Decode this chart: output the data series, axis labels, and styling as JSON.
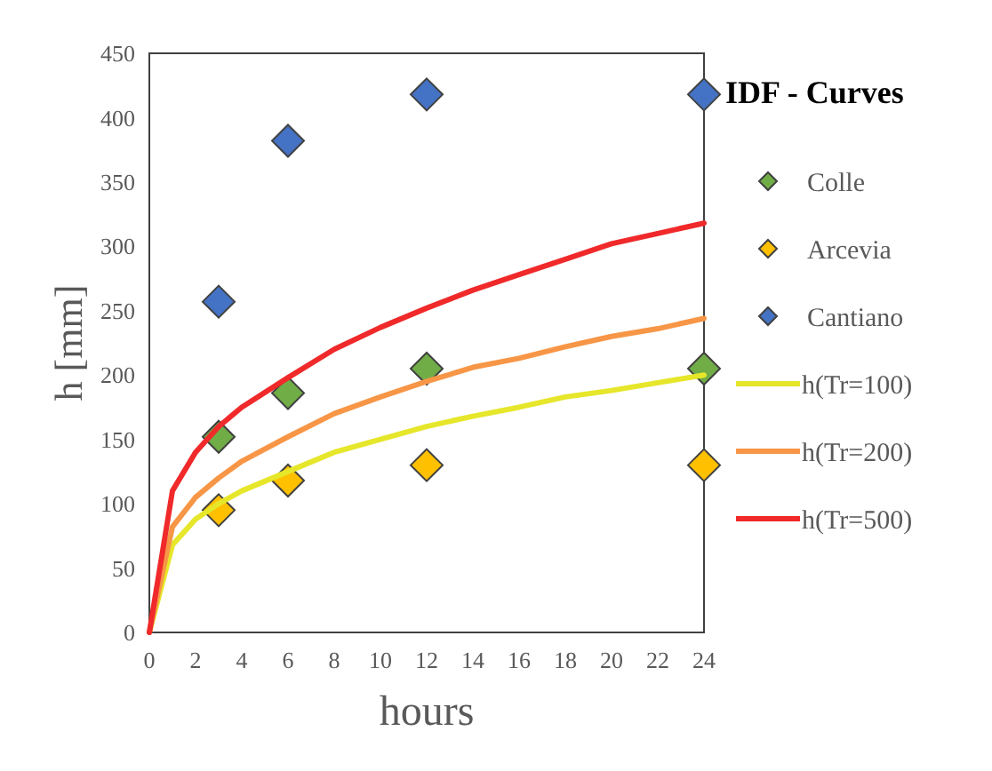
{
  "chart_data": {
    "type": "scatter",
    "xlabel": "hours",
    "ylabel": "h [mm]",
    "legend_title": "IDF - Curves",
    "legend": "right",
    "grid": false,
    "xlim": [
      0,
      24
    ],
    "ylim": [
      0,
      450
    ],
    "xticks": [
      0,
      2,
      4,
      6,
      8,
      10,
      12,
      14,
      16,
      18,
      20,
      22,
      24
    ],
    "yticks": [
      0,
      50,
      100,
      150,
      200,
      250,
      300,
      350,
      400,
      450
    ],
    "series": [
      {
        "name": "Colle",
        "marker": "diamond",
        "color": "#70ad47",
        "x": [
          3,
          6,
          12,
          24
        ],
        "values": [
          152,
          186,
          205,
          205
        ]
      },
      {
        "name": "Arcevia",
        "marker": "diamond",
        "color": "#ffc000",
        "x": [
          3,
          6,
          12,
          24
        ],
        "values": [
          95,
          118,
          130,
          130
        ]
      },
      {
        "name": "Cantiano",
        "marker": "diamond",
        "color": "#4472c4",
        "x": [
          3,
          6,
          12,
          24
        ],
        "values": [
          257,
          382,
          418,
          418
        ]
      },
      {
        "name": "h(Tr=100)",
        "type": "line",
        "marker": "none",
        "color": "#e6e62a",
        "x": [
          0,
          1,
          2,
          3,
          4,
          6,
          8,
          10,
          12,
          14,
          16,
          18,
          20,
          22,
          24
        ],
        "values": [
          0,
          68,
          88,
          100,
          110,
          125,
          140,
          150,
          160,
          168,
          175,
          183,
          188,
          194,
          200
        ]
      },
      {
        "name": "h(Tr=200)",
        "type": "line",
        "marker": "none",
        "color": "#f79646",
        "x": [
          0,
          1,
          2,
          3,
          4,
          6,
          8,
          10,
          12,
          14,
          16,
          18,
          20,
          22,
          24
        ],
        "values": [
          0,
          82,
          105,
          120,
          133,
          152,
          170,
          183,
          195,
          206,
          213,
          222,
          230,
          236,
          244
        ]
      },
      {
        "name": "h(Tr=500)",
        "type": "line",
        "marker": "none",
        "color": "#f0292a",
        "x": [
          0,
          1,
          2,
          3,
          4,
          6,
          8,
          10,
          12,
          14,
          16,
          18,
          20,
          22,
          24
        ],
        "values": [
          0,
          110,
          140,
          160,
          175,
          198,
          220,
          237,
          252,
          266,
          278,
          290,
          302,
          310,
          318
        ]
      }
    ]
  }
}
